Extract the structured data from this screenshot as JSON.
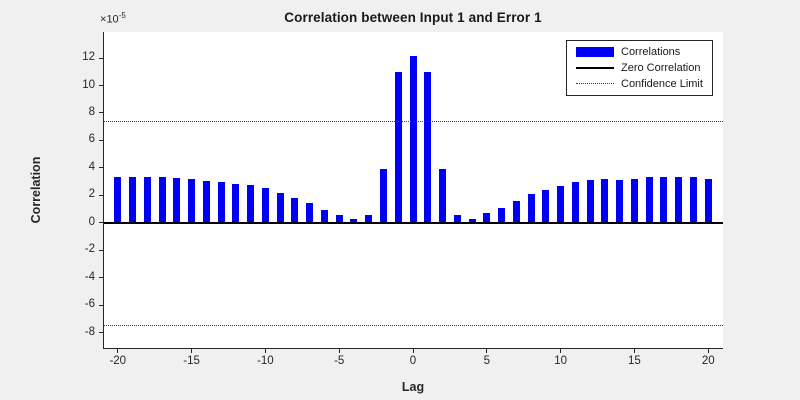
{
  "figure": {
    "title": "Correlation between Input 1 and Error 1"
  },
  "axes": {
    "ylabel": "Correlation",
    "xlabel": "Lag",
    "y_multiplier_times": "×",
    "y_multiplier_base": "10",
    "y_multiplier_exp": "-5",
    "yticks": [
      12,
      10,
      8,
      6,
      4,
      2,
      0,
      -2,
      -4,
      -6,
      -8
    ],
    "xticks": [
      -20,
      -15,
      -10,
      -5,
      0,
      5,
      10,
      15,
      20
    ]
  },
  "legend": {
    "items": [
      {
        "label": "Correlations",
        "swatch": "blue-patch"
      },
      {
        "label": "Zero Correlation",
        "swatch": "black-line"
      },
      {
        "label": "Confidence Limit",
        "swatch": "red-dotted-line"
      }
    ]
  },
  "colors": {
    "bar_blue": "#0000f5",
    "zero_line": "#000000",
    "confidence_red": "#cc0000",
    "figure_bg": "#f0f0f0",
    "plot_bg": "#ffffff",
    "axis": "#262626"
  },
  "chart_data": {
    "type": "bar",
    "title": "Correlation between Input 1 and Error 1",
    "xlabel": "Lag",
    "ylabel": "Correlation",
    "value_scale": "1e-5",
    "xlim": [
      -21,
      21
    ],
    "ylim": [
      -9.2,
      13.9
    ],
    "grid": false,
    "legend_position": "top-right",
    "x": [
      -20,
      -19,
      -18,
      -17,
      -16,
      -15,
      -14,
      -13,
      -12,
      -11,
      -10,
      -9,
      -8,
      -7,
      -6,
      -5,
      -4,
      -3,
      -2,
      -1,
      0,
      1,
      2,
      3,
      4,
      5,
      6,
      7,
      8,
      9,
      10,
      11,
      12,
      13,
      14,
      15,
      16,
      17,
      18,
      19,
      20
    ],
    "values": [
      3.3,
      3.35,
      3.35,
      3.3,
      3.25,
      3.2,
      3.05,
      2.95,
      2.85,
      2.75,
      2.5,
      2.2,
      1.8,
      1.45,
      0.95,
      0.6,
      0.3,
      0.6,
      3.9,
      11.0,
      12.15,
      11.0,
      3.9,
      0.55,
      0.3,
      0.7,
      1.05,
      1.6,
      2.1,
      2.4,
      2.65,
      2.95,
      3.15,
      3.2,
      3.15,
      3.2,
      3.3,
      3.35,
      3.3,
      3.3,
      3.2
    ],
    "zero_line": 0,
    "confidence_limit_upper": 7.45,
    "confidence_limit_lower": -7.45
  }
}
